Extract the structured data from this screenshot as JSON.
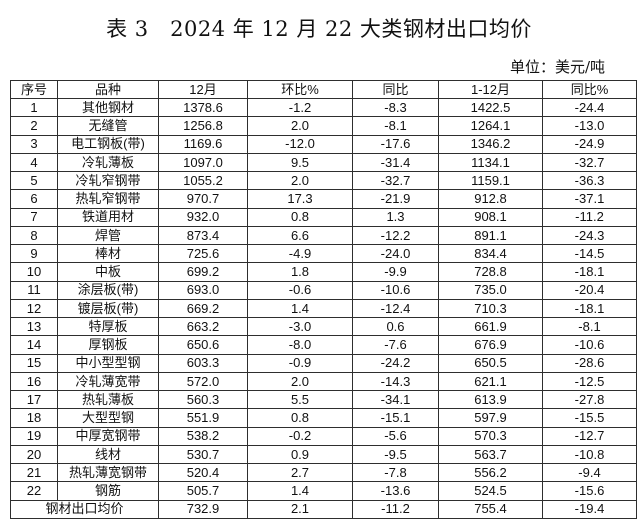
{
  "page": {
    "title": "表 3　2024 年 12 月 22 大类钢材出口均价",
    "unit_label": "单位：美元/吨"
  },
  "table": {
    "headers": [
      "序号",
      "品种",
      "12月",
      "环比%",
      "同比",
      "1-12月",
      "同比%"
    ],
    "rows": [
      [
        "1",
        "其他钢材",
        "1378.6",
        "-1.2",
        "-8.3",
        "1422.5",
        "-24.4"
      ],
      [
        "2",
        "无缝管",
        "1256.8",
        "2.0",
        "-8.1",
        "1264.1",
        "-13.0"
      ],
      [
        "3",
        "电工钢板(带)",
        "1169.6",
        "-12.0",
        "-17.6",
        "1346.2",
        "-24.9"
      ],
      [
        "4",
        "冷轧薄板",
        "1097.0",
        "9.5",
        "-31.4",
        "1134.1",
        "-32.7"
      ],
      [
        "5",
        "冷轧窄钢带",
        "1055.2",
        "2.0",
        "-32.7",
        "1159.1",
        "-36.3"
      ],
      [
        "6",
        "热轧窄钢带",
        "970.7",
        "17.3",
        "-21.9",
        "912.8",
        "-37.1"
      ],
      [
        "7",
        "铁道用材",
        "932.0",
        "0.8",
        "1.3",
        "908.1",
        "-11.2"
      ],
      [
        "8",
        "焊管",
        "873.4",
        "6.6",
        "-12.2",
        "891.1",
        "-24.3"
      ],
      [
        "9",
        "棒材",
        "725.6",
        "-4.9",
        "-24.0",
        "834.4",
        "-14.5"
      ],
      [
        "10",
        "中板",
        "699.2",
        "1.8",
        "-9.9",
        "728.8",
        "-18.1"
      ],
      [
        "11",
        "涂层板(带)",
        "693.0",
        "-0.6",
        "-10.6",
        "735.0",
        "-20.4"
      ],
      [
        "12",
        "镀层板(带)",
        "669.2",
        "1.4",
        "-12.4",
        "710.3",
        "-18.1"
      ],
      [
        "13",
        "特厚板",
        "663.2",
        "-3.0",
        "0.6",
        "661.9",
        "-8.1"
      ],
      [
        "14",
        "厚钢板",
        "650.6",
        "-8.0",
        "-7.6",
        "676.9",
        "-10.6"
      ],
      [
        "15",
        "中小型型钢",
        "603.3",
        "-0.9",
        "-24.2",
        "650.5",
        "-28.6"
      ],
      [
        "16",
        "冷轧薄宽带",
        "572.0",
        "2.0",
        "-14.3",
        "621.1",
        "-12.5"
      ],
      [
        "17",
        "热轧薄板",
        "560.3",
        "5.5",
        "-34.1",
        "613.9",
        "-27.8"
      ],
      [
        "18",
        "大型型钢",
        "551.9",
        "0.8",
        "-15.1",
        "597.9",
        "-15.5"
      ],
      [
        "19",
        "中厚宽钢带",
        "538.2",
        "-0.2",
        "-5.6",
        "570.3",
        "-12.7"
      ],
      [
        "20",
        "线材",
        "530.7",
        "0.9",
        "-9.5",
        "563.7",
        "-10.8"
      ],
      [
        "21",
        "热轧薄宽钢带",
        "520.4",
        "2.7",
        "-7.8",
        "556.2",
        "-9.4"
      ],
      [
        "22",
        "钢筋",
        "505.7",
        "1.4",
        "-13.6",
        "524.5",
        "-15.6"
      ]
    ],
    "footer": {
      "label": "钢材出口均价",
      "values": [
        "732.9",
        "2.1",
        "-11.2",
        "755.4",
        "-19.4"
      ]
    }
  }
}
